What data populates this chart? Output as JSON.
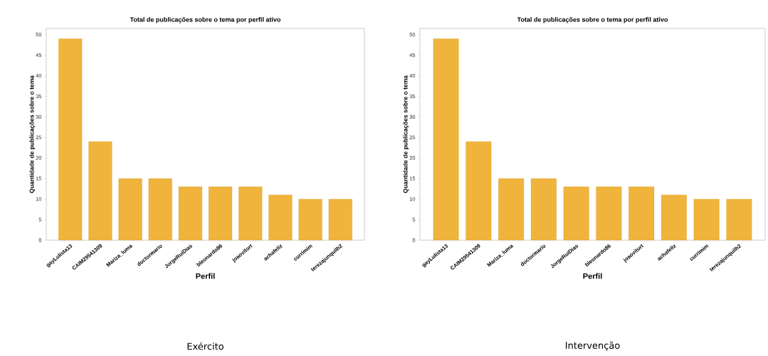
{
  "chart_data": [
    {
      "type": "bar",
      "title": "Total de publicações sobre o tema por perfil ativo",
      "xlabel": "Perfil",
      "ylabel": "Quantidade de publicações sobre o tema",
      "categories": [
        "gayLulista13",
        "CAIM29541309",
        "Mariza_luma",
        "doctormario",
        "JorgeRuiDias",
        "bleonardo86",
        "joaovitort",
        "achafeliz",
        "currimim",
        "terezajunquilh2"
      ],
      "values": [
        49,
        24,
        15,
        15,
        13,
        13,
        13,
        11,
        10,
        10
      ],
      "color": "#f0b43c",
      "ylim": [
        0,
        51.5
      ],
      "yticks": [
        0,
        5,
        10,
        15,
        20,
        25,
        30,
        35,
        40,
        45,
        50
      ],
      "annotations": [
        "Exército"
      ]
    },
    {
      "type": "bar",
      "title": "Total de publicações sobre o tema por perfil ativo",
      "xlabel": "Perfil",
      "ylabel": "Quantidade de publicações sobre o tema",
      "categories": [
        "gayLulista13",
        "CAIM29541309",
        "Mariza_luma",
        "doctormario",
        "JorgeRuiDias",
        "bleonardo86",
        "joaovitort",
        "achafeliz",
        "currimim",
        "terezajunquilh2"
      ],
      "values": [
        49,
        24,
        15,
        15,
        13,
        13,
        13,
        11,
        10,
        10
      ],
      "color": "#f0b43c",
      "ylim": [
        0,
        51.5
      ],
      "yticks": [
        0,
        5,
        10,
        15,
        20,
        25,
        30,
        35,
        40,
        45,
        50
      ],
      "annotations": [
        "Intervenção"
      ]
    }
  ]
}
